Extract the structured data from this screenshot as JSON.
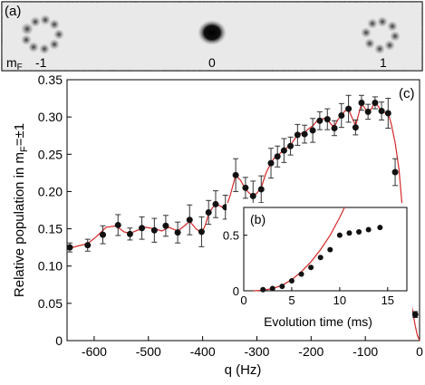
{
  "panel_a": {
    "label": "(a)",
    "mf_label": "mF",
    "state_labels": [
      "-1",
      "0",
      "1"
    ]
  },
  "colors": {
    "fit_line": "#d62728",
    "points": "#111111",
    "axes": "#000000"
  },
  "chart_data": [
    {
      "type": "scatter",
      "panel": "(c)",
      "xlabel": "q (Hz)",
      "ylabel": "Relative population in mF=±1",
      "xlim": [
        -650,
        0
      ],
      "ylim": [
        0,
        0.35
      ],
      "xticks": [
        -600,
        -500,
        -400,
        -300,
        -200,
        -100,
        0
      ],
      "yticks": [
        0,
        0.05,
        0.1,
        0.15,
        0.2,
        0.25,
        0.3,
        0.35
      ],
      "grid": false,
      "series": [
        {
          "kind": "points_with_error_bars",
          "x": [
            -645,
            -612,
            -584,
            -556,
            -534,
            -512,
            -489,
            -468,
            -446,
            -424,
            -402,
            -389,
            -376,
            -358,
            -339,
            -321,
            -307,
            -292,
            -274,
            -262,
            -250,
            -238,
            -225,
            -212,
            -197,
            -184,
            -170,
            -157,
            -144,
            -131,
            -118,
            -107,
            -95,
            -82,
            -70,
            -58,
            -45,
            -32,
            -20,
            -8
          ],
          "y": [
            0.125,
            0.128,
            0.142,
            0.155,
            0.143,
            0.151,
            0.148,
            0.154,
            0.145,
            0.162,
            0.146,
            0.172,
            0.183,
            0.179,
            0.222,
            0.205,
            0.194,
            0.203,
            0.238,
            0.247,
            0.255,
            0.261,
            0.276,
            0.277,
            0.282,
            0.295,
            0.297,
            0.285,
            0.302,
            0.311,
            0.286,
            0.319,
            0.307,
            0.319,
            0.308,
            0.305,
            0.226,
            0.129,
            0.08,
            0.035
          ],
          "err": [
            0.006,
            0.008,
            0.012,
            0.014,
            0.008,
            0.015,
            0.016,
            0.014,
            0.014,
            0.02,
            0.02,
            0.016,
            0.018,
            0.016,
            0.022,
            0.014,
            0.02,
            0.018,
            0.02,
            0.014,
            0.016,
            0.012,
            0.014,
            0.012,
            0.016,
            0.012,
            0.014,
            0.01,
            0.016,
            0.018,
            0.01,
            0.01,
            0.01,
            0.008,
            0.012,
            0.02,
            0.018,
            0.014,
            0.006,
            0.004
          ]
        },
        {
          "kind": "fit_line",
          "x": [
            -650,
            -630,
            -612,
            -595,
            -578,
            -560,
            -545,
            -534,
            -520,
            -505,
            -489,
            -475,
            -462,
            -446,
            -432,
            -424,
            -412,
            -402,
            -395,
            -389,
            -382,
            -376,
            -368,
            -358,
            -349,
            -339,
            -330,
            -321,
            -314,
            -307,
            -300,
            -292,
            -283,
            -274,
            -268,
            -262,
            -256,
            -250,
            -244,
            -238,
            -231,
            -225,
            -218,
            -212,
            -205,
            -197,
            -190,
            -184,
            -177,
            -170,
            -163,
            -157,
            -150,
            -144,
            -138,
            -131,
            -125,
            -118,
            -112,
            -107,
            -101,
            -95,
            -88,
            -82,
            -76,
            -70,
            -64,
            -58,
            -52,
            -45,
            -38,
            -32,
            -26,
            -20,
            -14,
            -8,
            -4,
            0
          ],
          "y": [
            0.123,
            0.127,
            0.13,
            0.14,
            0.152,
            0.154,
            0.146,
            0.144,
            0.148,
            0.152,
            0.15,
            0.147,
            0.152,
            0.147,
            0.155,
            0.16,
            0.15,
            0.144,
            0.155,
            0.17,
            0.178,
            0.183,
            0.181,
            0.176,
            0.195,
            0.222,
            0.215,
            0.203,
            0.198,
            0.193,
            0.198,
            0.205,
            0.225,
            0.238,
            0.245,
            0.247,
            0.252,
            0.256,
            0.259,
            0.262,
            0.27,
            0.276,
            0.278,
            0.279,
            0.284,
            0.288,
            0.294,
            0.296,
            0.298,
            0.297,
            0.29,
            0.287,
            0.297,
            0.302,
            0.308,
            0.31,
            0.3,
            0.288,
            0.305,
            0.318,
            0.312,
            0.305,
            0.312,
            0.32,
            0.314,
            0.308,
            0.306,
            0.305,
            0.29,
            0.265,
            0.23,
            0.18,
            0.13,
            0.08,
            0.045,
            0.02,
            0.007,
            0.0
          ]
        }
      ]
    },
    {
      "type": "scatter",
      "panel": "(b)",
      "xlabel": "Evolution time (ms)",
      "ylabel": "",
      "xlim": [
        0,
        17
      ],
      "ylim": [
        0,
        0.75
      ],
      "xticks": [
        0,
        5,
        10,
        15
      ],
      "yticks": [
        0,
        0.5
      ],
      "grid": false,
      "series": [
        {
          "kind": "points",
          "x": [
            2.0,
            3.0,
            4.0,
            5.0,
            6.0,
            7.0,
            8.0,
            9.0,
            10.0,
            11.0,
            12.0,
            13.0,
            14.2
          ],
          "y": [
            0.01,
            0.02,
            0.04,
            0.09,
            0.15,
            0.21,
            0.3,
            0.37,
            0.5,
            0.52,
            0.53,
            0.55,
            0.57
          ]
        },
        {
          "kind": "fit_line",
          "x": [
            1.0,
            2.0,
            3.0,
            4.0,
            5.0,
            6.0,
            7.0,
            8.0,
            9.0,
            10.0,
            10.5
          ],
          "y": [
            0.0,
            0.004,
            0.02,
            0.05,
            0.1,
            0.17,
            0.26,
            0.37,
            0.5,
            0.66,
            0.75
          ]
        }
      ]
    }
  ]
}
